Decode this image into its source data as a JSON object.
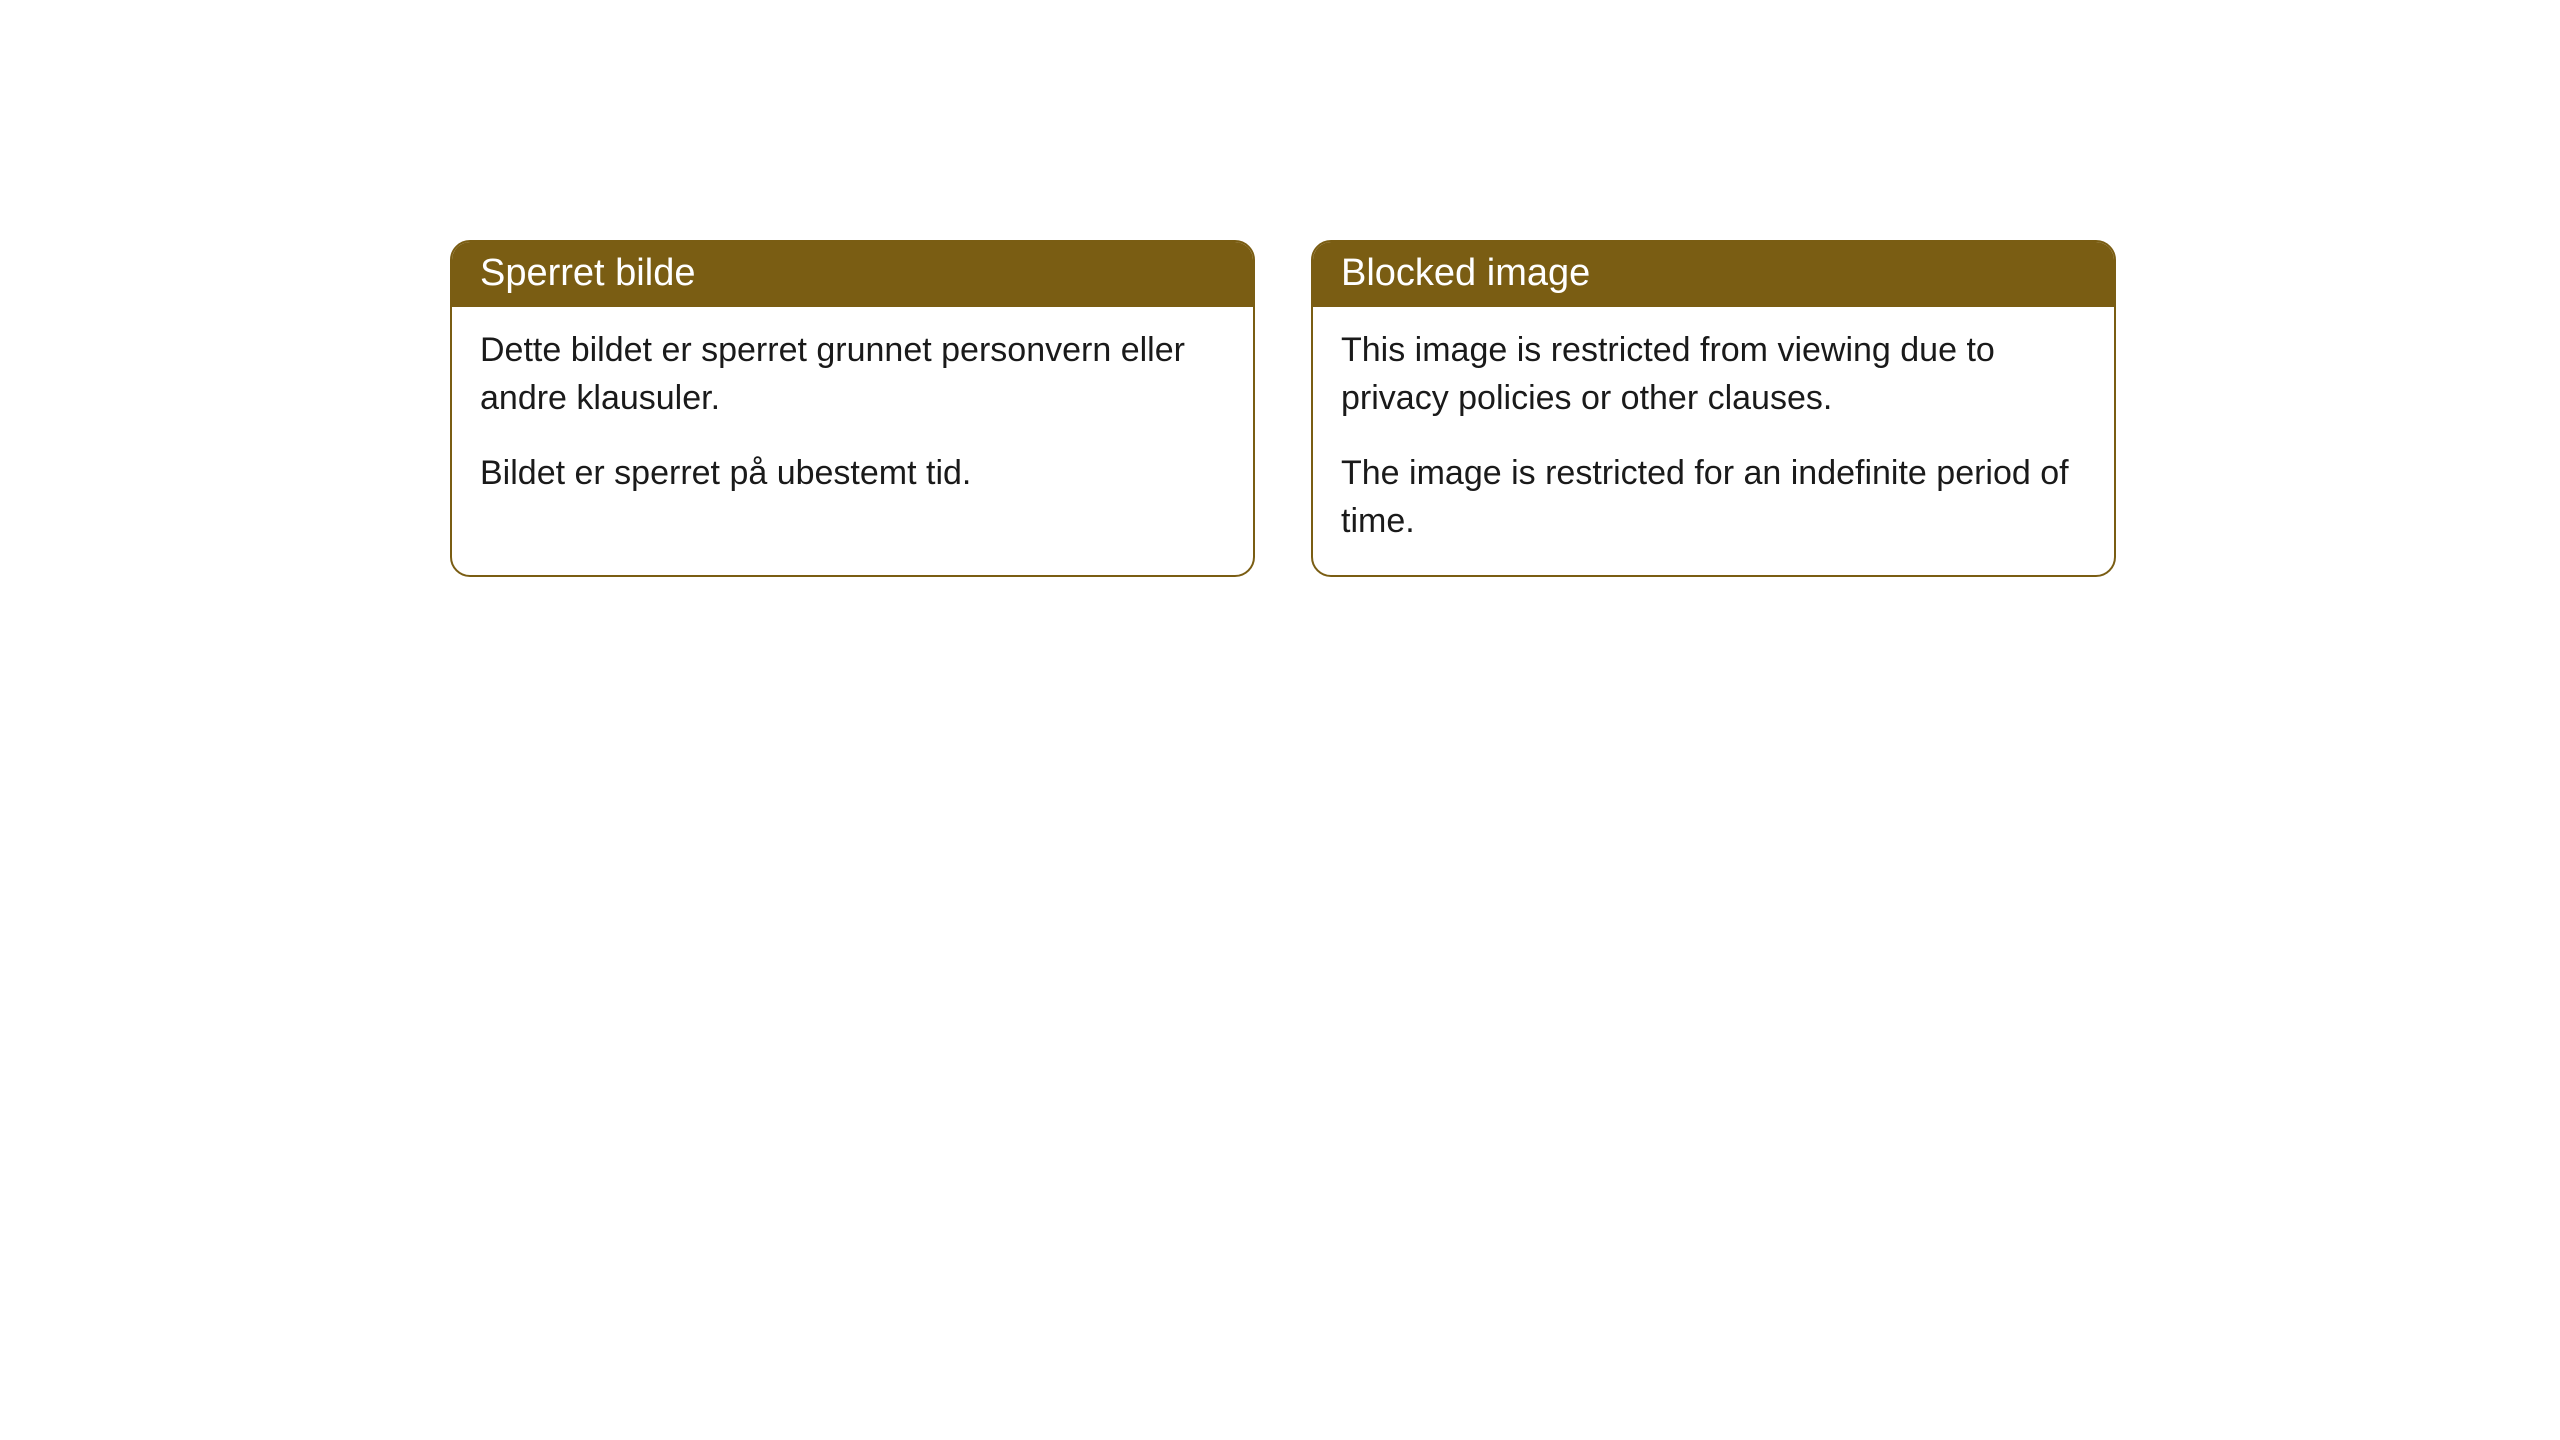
{
  "cards": [
    {
      "title": "Sperret bilde",
      "paragraph1": "Dette bildet er sperret grunnet personvern eller andre klausuler.",
      "paragraph2": "Bildet er sperret på ubestemt tid."
    },
    {
      "title": "Blocked image",
      "paragraph1": "This image is restricted from viewing due to privacy policies or other clauses.",
      "paragraph2": "The image is restricted for an indefinite period of time."
    }
  ],
  "styling": {
    "header_bg_color": "#7a5d13",
    "header_text_color": "#ffffff",
    "body_text_color": "#1a1a1a",
    "border_color": "#7a5d13",
    "background_color": "#ffffff",
    "header_fontsize": 38,
    "body_fontsize": 34,
    "border_radius": 20
  }
}
